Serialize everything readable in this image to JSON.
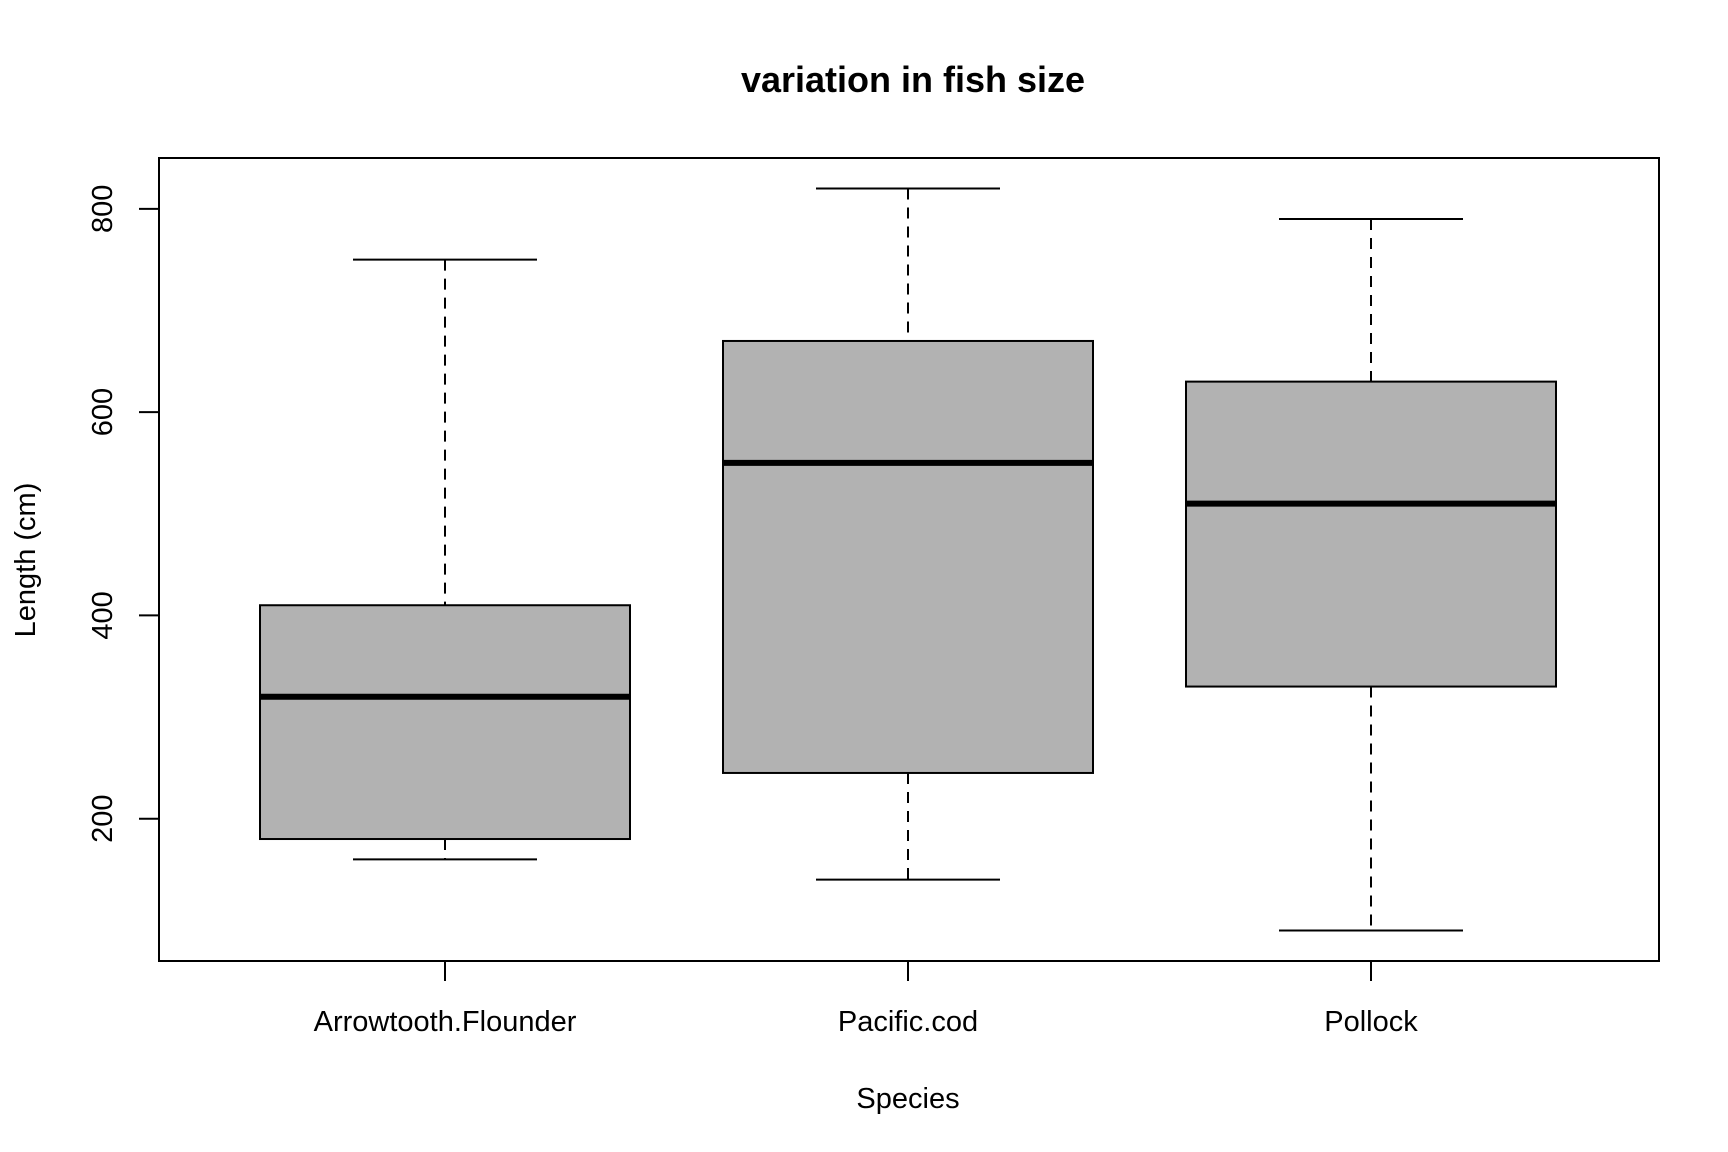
{
  "chart_data": {
    "type": "boxplot",
    "title": "variation in fish size",
    "xlabel": "Species",
    "ylabel": "Length (cm)",
    "categories": [
      "Arrowtooth.Flounder",
      "Pacific.cod",
      "Pollock"
    ],
    "boxes": [
      {
        "name": "Arrowtooth.Flounder",
        "whisker_low": 160,
        "q1": 180,
        "median": 320,
        "q3": 410,
        "whisker_high": 750
      },
      {
        "name": "Pacific.cod",
        "whisker_low": 140,
        "q1": 245,
        "median": 550,
        "q3": 670,
        "whisker_high": 820
      },
      {
        "name": "Pollock",
        "whisker_low": 90,
        "q1": 330,
        "median": 510,
        "q3": 630,
        "whisker_high": 790
      }
    ],
    "ylim": [
      60,
      850
    ],
    "yticks": [
      200,
      400,
      600,
      800
    ],
    "grid": false,
    "colors": {
      "box_fill": "#b2b2b2",
      "stroke": "#000000",
      "background": "#ffffff"
    }
  }
}
